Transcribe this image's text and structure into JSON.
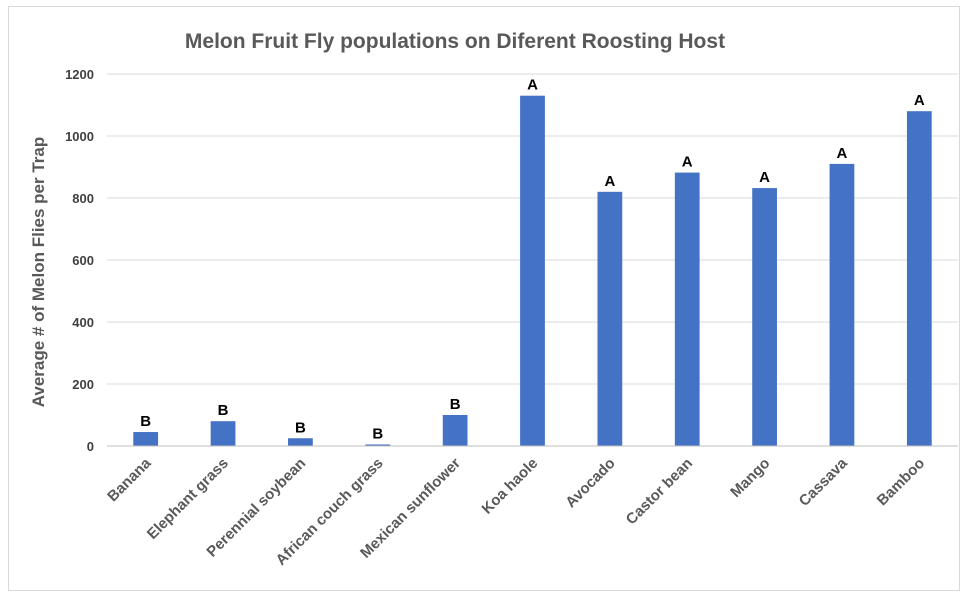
{
  "chart_data": {
    "type": "bar",
    "title": "Melon Fruit Fly populations on Diferent Roosting Host",
    "xlabel": "",
    "ylabel": "Average # of Melon Flies per Trap",
    "ylim": [
      0,
      1200
    ],
    "yticks": [
      0,
      200,
      400,
      600,
      800,
      1000,
      1200
    ],
    "grid": true,
    "legend": "none",
    "bar_color": "#4472C4",
    "categories": [
      "Banana",
      "Elephant grass",
      "Perennial soybean",
      "African couch grass",
      "Mexican sunflower",
      "Koa haole",
      "Avocado",
      "Castor bean",
      "Mango",
      "Cassava",
      "Bamboo"
    ],
    "values": [
      45,
      80,
      25,
      5,
      100,
      1130,
      820,
      882,
      832,
      910,
      1080
    ],
    "annotations": [
      "B",
      "B",
      "B",
      "B",
      "B",
      "A",
      "A",
      "A",
      "A",
      "A",
      "A"
    ]
  }
}
